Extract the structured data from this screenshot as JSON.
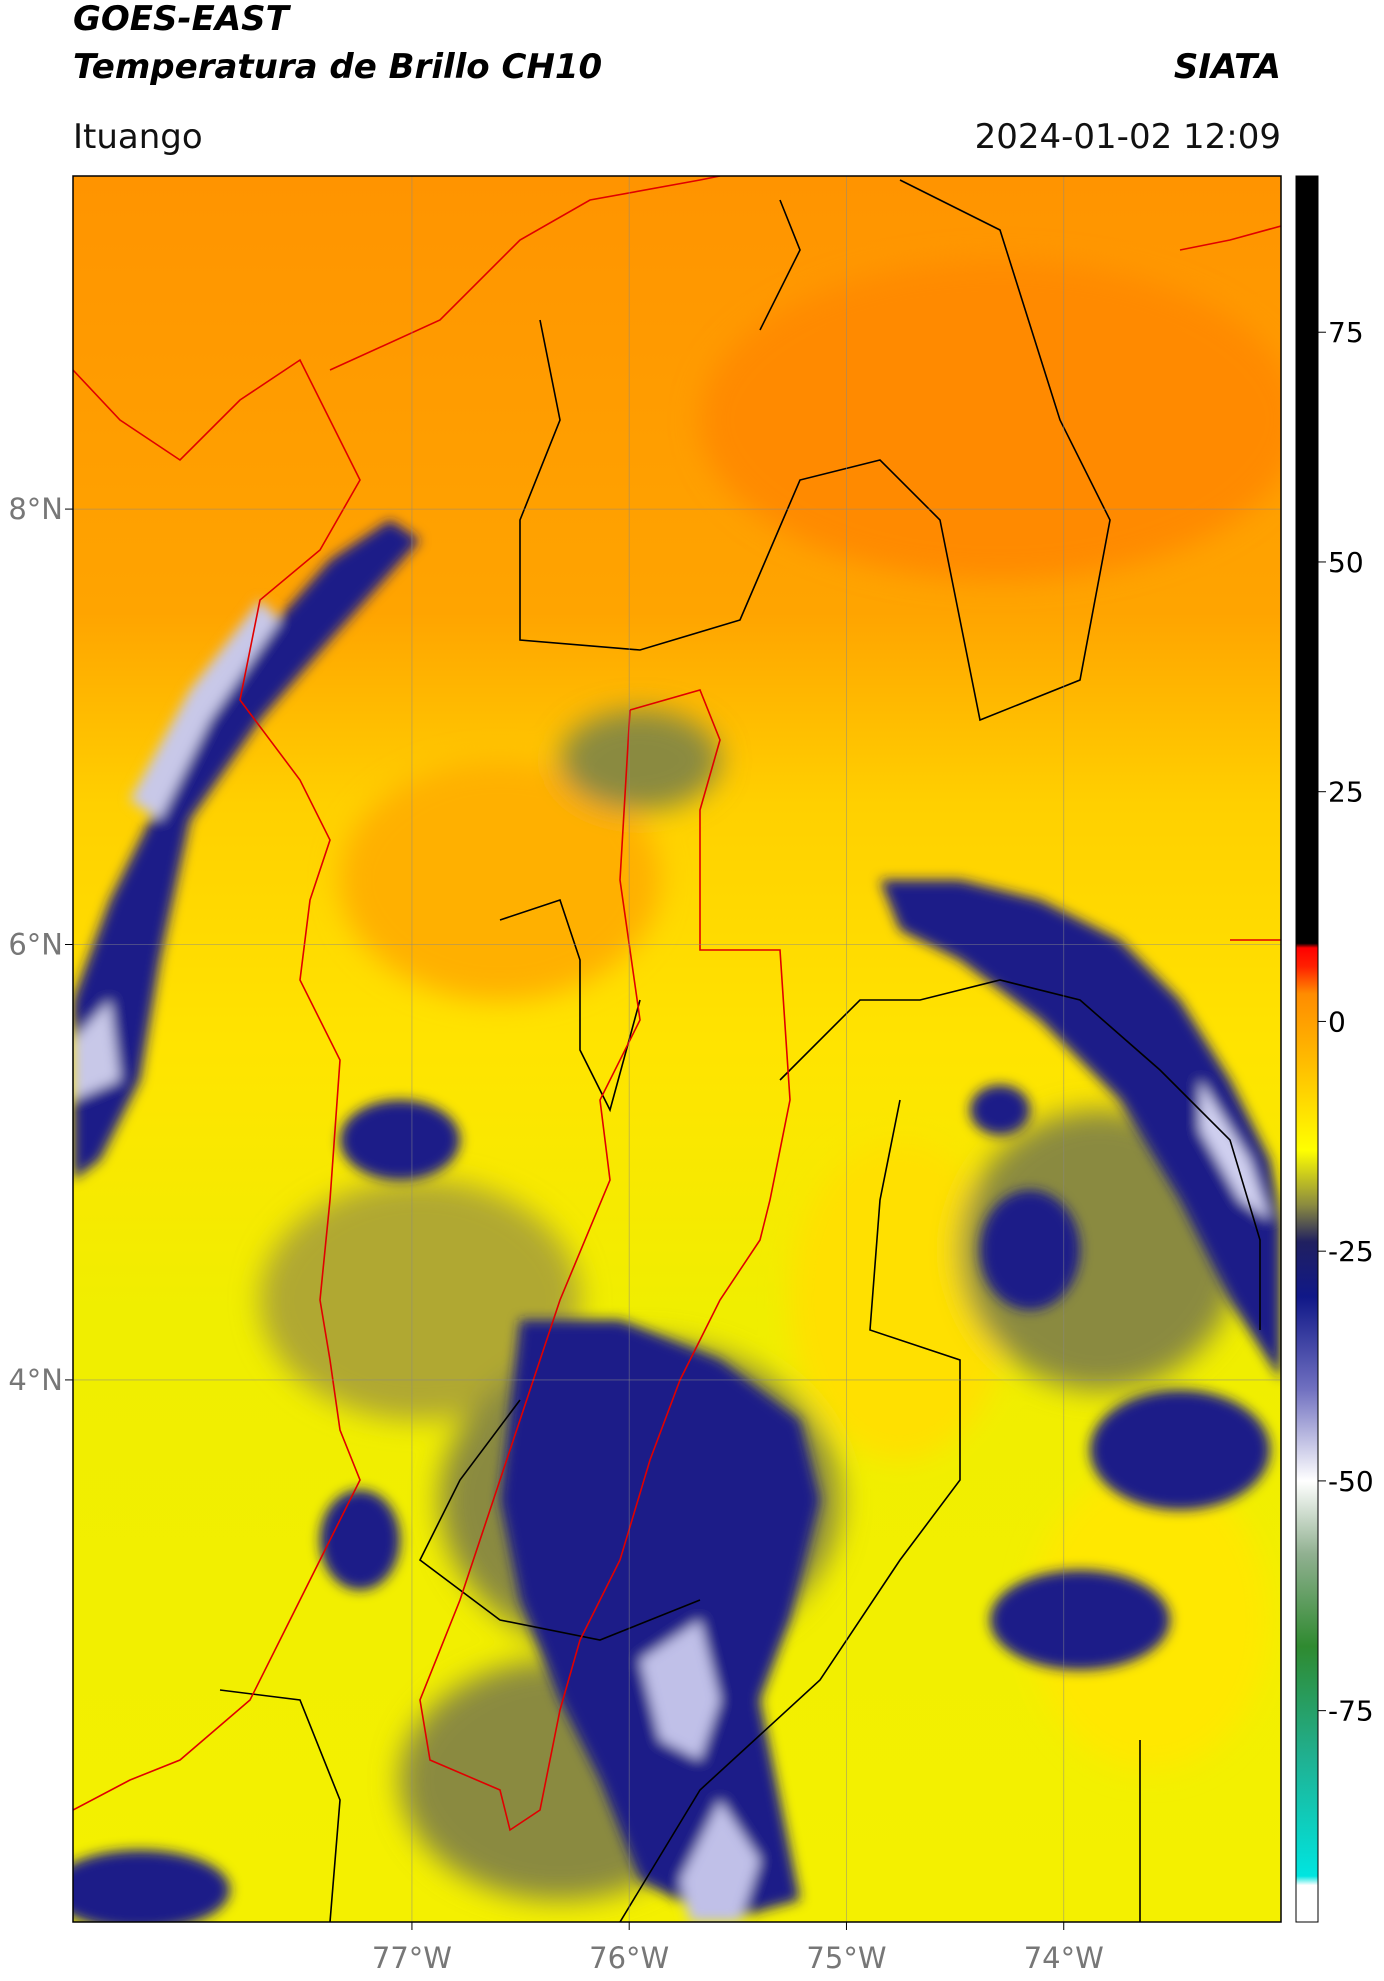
{
  "header": {
    "title": "GOES-EAST",
    "subtitle": "Temperatura de Brillo CH10",
    "source": "SIATA",
    "location": "Ituango",
    "timestamp": "2024-01-02 12:09"
  },
  "map": {
    "xlim": [
      -78.56,
      -73.0
    ],
    "ylim": [
      1.51,
      9.53
    ],
    "xticks": [
      {
        "value": -77,
        "label": "77°W"
      },
      {
        "value": -76,
        "label": "76°W"
      },
      {
        "value": -75,
        "label": "75°W"
      },
      {
        "value": -74,
        "label": "74°W"
      }
    ],
    "yticks": [
      {
        "value": 8,
        "label": "8°N"
      },
      {
        "value": 6,
        "label": "6°N"
      },
      {
        "value": 4,
        "label": "4°N"
      }
    ],
    "grid": true
  },
  "colorbar": {
    "lim": [
      -98,
      92
    ],
    "ticks": [
      75,
      50,
      25,
      0,
      -25,
      -50,
      -75
    ],
    "colormap": [
      {
        "value": -98,
        "color": "#ffffff"
      },
      {
        "value": -94,
        "color": "#ffffff"
      },
      {
        "value": -93,
        "color": "#00e5e0"
      },
      {
        "value": -80,
        "color": "#20b090"
      },
      {
        "value": -68,
        "color": "#2f8a30"
      },
      {
        "value": -58,
        "color": "#90b090"
      },
      {
        "value": -50,
        "color": "#ffffff"
      },
      {
        "value": -40,
        "color": "#7070c0"
      },
      {
        "value": -30,
        "color": "#101888"
      },
      {
        "value": -24,
        "color": "#202060"
      },
      {
        "value": -20,
        "color": "#8a8a40"
      },
      {
        "value": -14,
        "color": "#ffff00"
      },
      {
        "value": -5,
        "color": "#ffc000"
      },
      {
        "value": 3,
        "color": "#ff8c00"
      },
      {
        "value": 6,
        "color": "#ff2000"
      },
      {
        "value": 8,
        "color": "#ff0000"
      },
      {
        "value": 8.5,
        "color": "#000000"
      },
      {
        "value": 92,
        "color": "#000000"
      }
    ]
  }
}
